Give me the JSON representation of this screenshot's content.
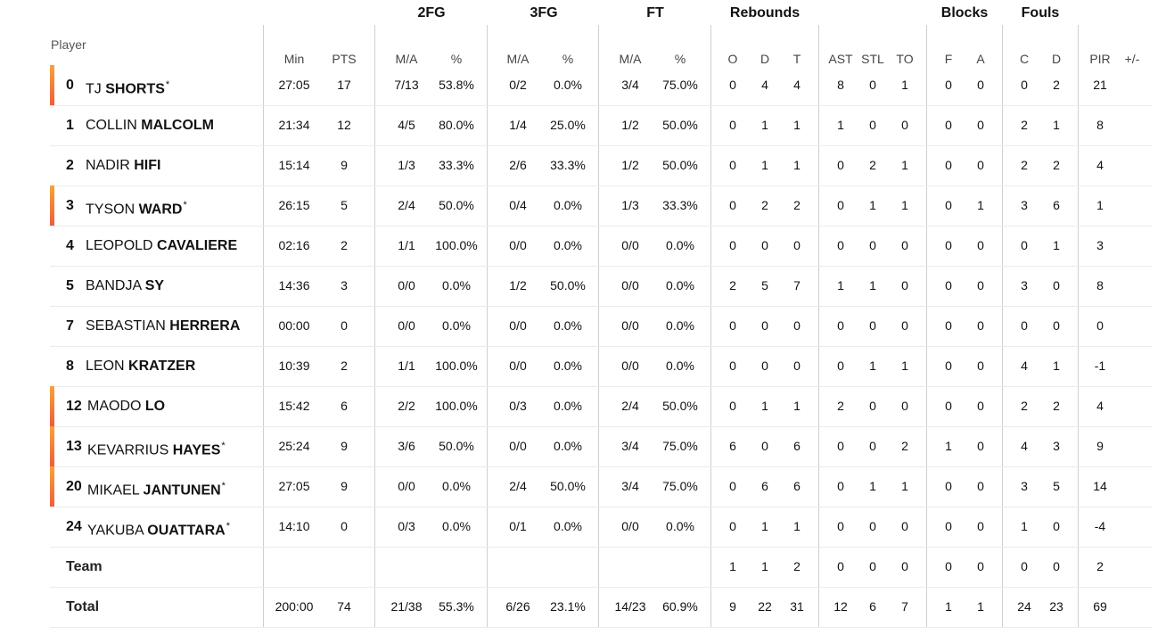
{
  "headers": {
    "player": "Player",
    "groups": {
      "twofg": "2FG",
      "threefg": "3FG",
      "ft": "FT",
      "rebounds": "Rebounds",
      "blocks": "Blocks",
      "fouls": "Fouls"
    },
    "min": "Min",
    "pts": "PTS",
    "ma2": "M/A",
    "pct2": "%",
    "ma3": "M/A",
    "pct3": "%",
    "maft": "M/A",
    "pctft": "%",
    "o": "O",
    "d": "D",
    "t": "T",
    "ast": "AST",
    "stl": "STL",
    "to": "TO",
    "bf": "F",
    "ba": "A",
    "fc": "C",
    "fd": "D",
    "pir": "PIR",
    "pm": "+/-"
  },
  "players": [
    {
      "num": "0",
      "first": "TJ",
      "last": "SHORTS",
      "star": "*",
      "starter": true,
      "min": "27:05",
      "pts": "17",
      "ma2": "7/13",
      "pct2": "53.8%",
      "ma3": "0/2",
      "pct3": "0.0%",
      "maft": "3/4",
      "pctft": "75.0%",
      "o": "0",
      "d": "4",
      "t": "4",
      "ast": "8",
      "stl": "0",
      "to": "1",
      "bf": "0",
      "ba": "0",
      "fc": "0",
      "fd": "2",
      "pir": "21"
    },
    {
      "num": "1",
      "first": "COLLIN",
      "last": "MALCOLM",
      "star": "",
      "starter": false,
      "min": "21:34",
      "pts": "12",
      "ma2": "4/5",
      "pct2": "80.0%",
      "ma3": "1/4",
      "pct3": "25.0%",
      "maft": "1/2",
      "pctft": "50.0%",
      "o": "0",
      "d": "1",
      "t": "1",
      "ast": "1",
      "stl": "0",
      "to": "0",
      "bf": "0",
      "ba": "0",
      "fc": "2",
      "fd": "1",
      "pir": "8"
    },
    {
      "num": "2",
      "first": "NADIR",
      "last": "HIFI",
      "star": "",
      "starter": false,
      "min": "15:14",
      "pts": "9",
      "ma2": "1/3",
      "pct2": "33.3%",
      "ma3": "2/6",
      "pct3": "33.3%",
      "maft": "1/2",
      "pctft": "50.0%",
      "o": "0",
      "d": "1",
      "t": "1",
      "ast": "0",
      "stl": "2",
      "to": "1",
      "bf": "0",
      "ba": "0",
      "fc": "2",
      "fd": "2",
      "pir": "4"
    },
    {
      "num": "3",
      "first": "TYSON",
      "last": "WARD",
      "star": "*",
      "starter": true,
      "min": "26:15",
      "pts": "5",
      "ma2": "2/4",
      "pct2": "50.0%",
      "ma3": "0/4",
      "pct3": "0.0%",
      "maft": "1/3",
      "pctft": "33.3%",
      "o": "0",
      "d": "2",
      "t": "2",
      "ast": "0",
      "stl": "1",
      "to": "1",
      "bf": "0",
      "ba": "1",
      "fc": "3",
      "fd": "6",
      "pir": "1"
    },
    {
      "num": "4",
      "first": "LEOPOLD",
      "last": "CAVALIERE",
      "star": "",
      "starter": false,
      "min": "02:16",
      "pts": "2",
      "ma2": "1/1",
      "pct2": "100.0%",
      "ma3": "0/0",
      "pct3": "0.0%",
      "maft": "0/0",
      "pctft": "0.0%",
      "o": "0",
      "d": "0",
      "t": "0",
      "ast": "0",
      "stl": "0",
      "to": "0",
      "bf": "0",
      "ba": "0",
      "fc": "0",
      "fd": "1",
      "pir": "3"
    },
    {
      "num": "5",
      "first": "BANDJA",
      "last": "SY",
      "star": "",
      "starter": false,
      "min": "14:36",
      "pts": "3",
      "ma2": "0/0",
      "pct2": "0.0%",
      "ma3": "1/2",
      "pct3": "50.0%",
      "maft": "0/0",
      "pctft": "0.0%",
      "o": "2",
      "d": "5",
      "t": "7",
      "ast": "1",
      "stl": "1",
      "to": "0",
      "bf": "0",
      "ba": "0",
      "fc": "3",
      "fd": "0",
      "pir": "8"
    },
    {
      "num": "7",
      "first": "SEBASTIAN",
      "last": "HERRERA",
      "star": "",
      "starter": false,
      "min": "00:00",
      "pts": "0",
      "ma2": "0/0",
      "pct2": "0.0%",
      "ma3": "0/0",
      "pct3": "0.0%",
      "maft": "0/0",
      "pctft": "0.0%",
      "o": "0",
      "d": "0",
      "t": "0",
      "ast": "0",
      "stl": "0",
      "to": "0",
      "bf": "0",
      "ba": "0",
      "fc": "0",
      "fd": "0",
      "pir": "0"
    },
    {
      "num": "8",
      "first": "LEON",
      "last": "KRATZER",
      "star": "",
      "starter": false,
      "min": "10:39",
      "pts": "2",
      "ma2": "1/1",
      "pct2": "100.0%",
      "ma3": "0/0",
      "pct3": "0.0%",
      "maft": "0/0",
      "pctft": "0.0%",
      "o": "0",
      "d": "0",
      "t": "0",
      "ast": "0",
      "stl": "1",
      "to": "1",
      "bf": "0",
      "ba": "0",
      "fc": "4",
      "fd": "1",
      "pir": "-1"
    },
    {
      "num": "12",
      "first": "MAODO",
      "last": "LO",
      "star": "",
      "starter": true,
      "min": "15:42",
      "pts": "6",
      "ma2": "2/2",
      "pct2": "100.0%",
      "ma3": "0/3",
      "pct3": "0.0%",
      "maft": "2/4",
      "pctft": "50.0%",
      "o": "0",
      "d": "1",
      "t": "1",
      "ast": "2",
      "stl": "0",
      "to": "0",
      "bf": "0",
      "ba": "0",
      "fc": "2",
      "fd": "2",
      "pir": "4"
    },
    {
      "num": "13",
      "first": "KEVARRIUS",
      "last": "HAYES",
      "star": "*",
      "starter": true,
      "min": "25:24",
      "pts": "9",
      "ma2": "3/6",
      "pct2": "50.0%",
      "ma3": "0/0",
      "pct3": "0.0%",
      "maft": "3/4",
      "pctft": "75.0%",
      "o": "6",
      "d": "0",
      "t": "6",
      "ast": "0",
      "stl": "0",
      "to": "2",
      "bf": "1",
      "ba": "0",
      "fc": "4",
      "fd": "3",
      "pir": "9"
    },
    {
      "num": "20",
      "first": "MIKAEL",
      "last": "JANTUNEN",
      "star": "*",
      "starter": true,
      "min": "27:05",
      "pts": "9",
      "ma2": "0/0",
      "pct2": "0.0%",
      "ma3": "2/4",
      "pct3": "50.0%",
      "maft": "3/4",
      "pctft": "75.0%",
      "o": "0",
      "d": "6",
      "t": "6",
      "ast": "0",
      "stl": "1",
      "to": "1",
      "bf": "0",
      "ba": "0",
      "fc": "3",
      "fd": "5",
      "pir": "14"
    },
    {
      "num": "24",
      "first": "YAKUBA",
      "last": "OUATTARA",
      "star": "*",
      "starter": false,
      "min": "14:10",
      "pts": "0",
      "ma2": "0/3",
      "pct2": "0.0%",
      "ma3": "0/1",
      "pct3": "0.0%",
      "maft": "0/0",
      "pctft": "0.0%",
      "o": "0",
      "d": "1",
      "t": "1",
      "ast": "0",
      "stl": "0",
      "to": "0",
      "bf": "0",
      "ba": "0",
      "fc": "1",
      "fd": "0",
      "pir": "-4"
    }
  ],
  "team": {
    "label": "Team",
    "min": "",
    "pts": "",
    "ma2": "",
    "pct2": "",
    "ma3": "",
    "pct3": "",
    "maft": "",
    "pctft": "",
    "o": "1",
    "d": "1",
    "t": "2",
    "ast": "0",
    "stl": "0",
    "to": "0",
    "bf": "0",
    "ba": "0",
    "fc": "0",
    "fd": "0",
    "pir": "2"
  },
  "total": {
    "label": "Total",
    "min": "200:00",
    "pts": "74",
    "ma2": "21/38",
    "pct2": "55.3%",
    "ma3": "6/26",
    "pct3": "23.1%",
    "maft": "14/23",
    "pctft": "60.9%",
    "o": "9",
    "d": "22",
    "t": "31",
    "ast": "12",
    "stl": "6",
    "to": "7",
    "bf": "1",
    "ba": "1",
    "fc": "24",
    "fd": "23",
    "pir": "69"
  },
  "colors": {
    "starter_accent_top": "#f9a13a",
    "starter_accent_bottom": "#ef5d3a",
    "divider": "#cfcfcf"
  }
}
